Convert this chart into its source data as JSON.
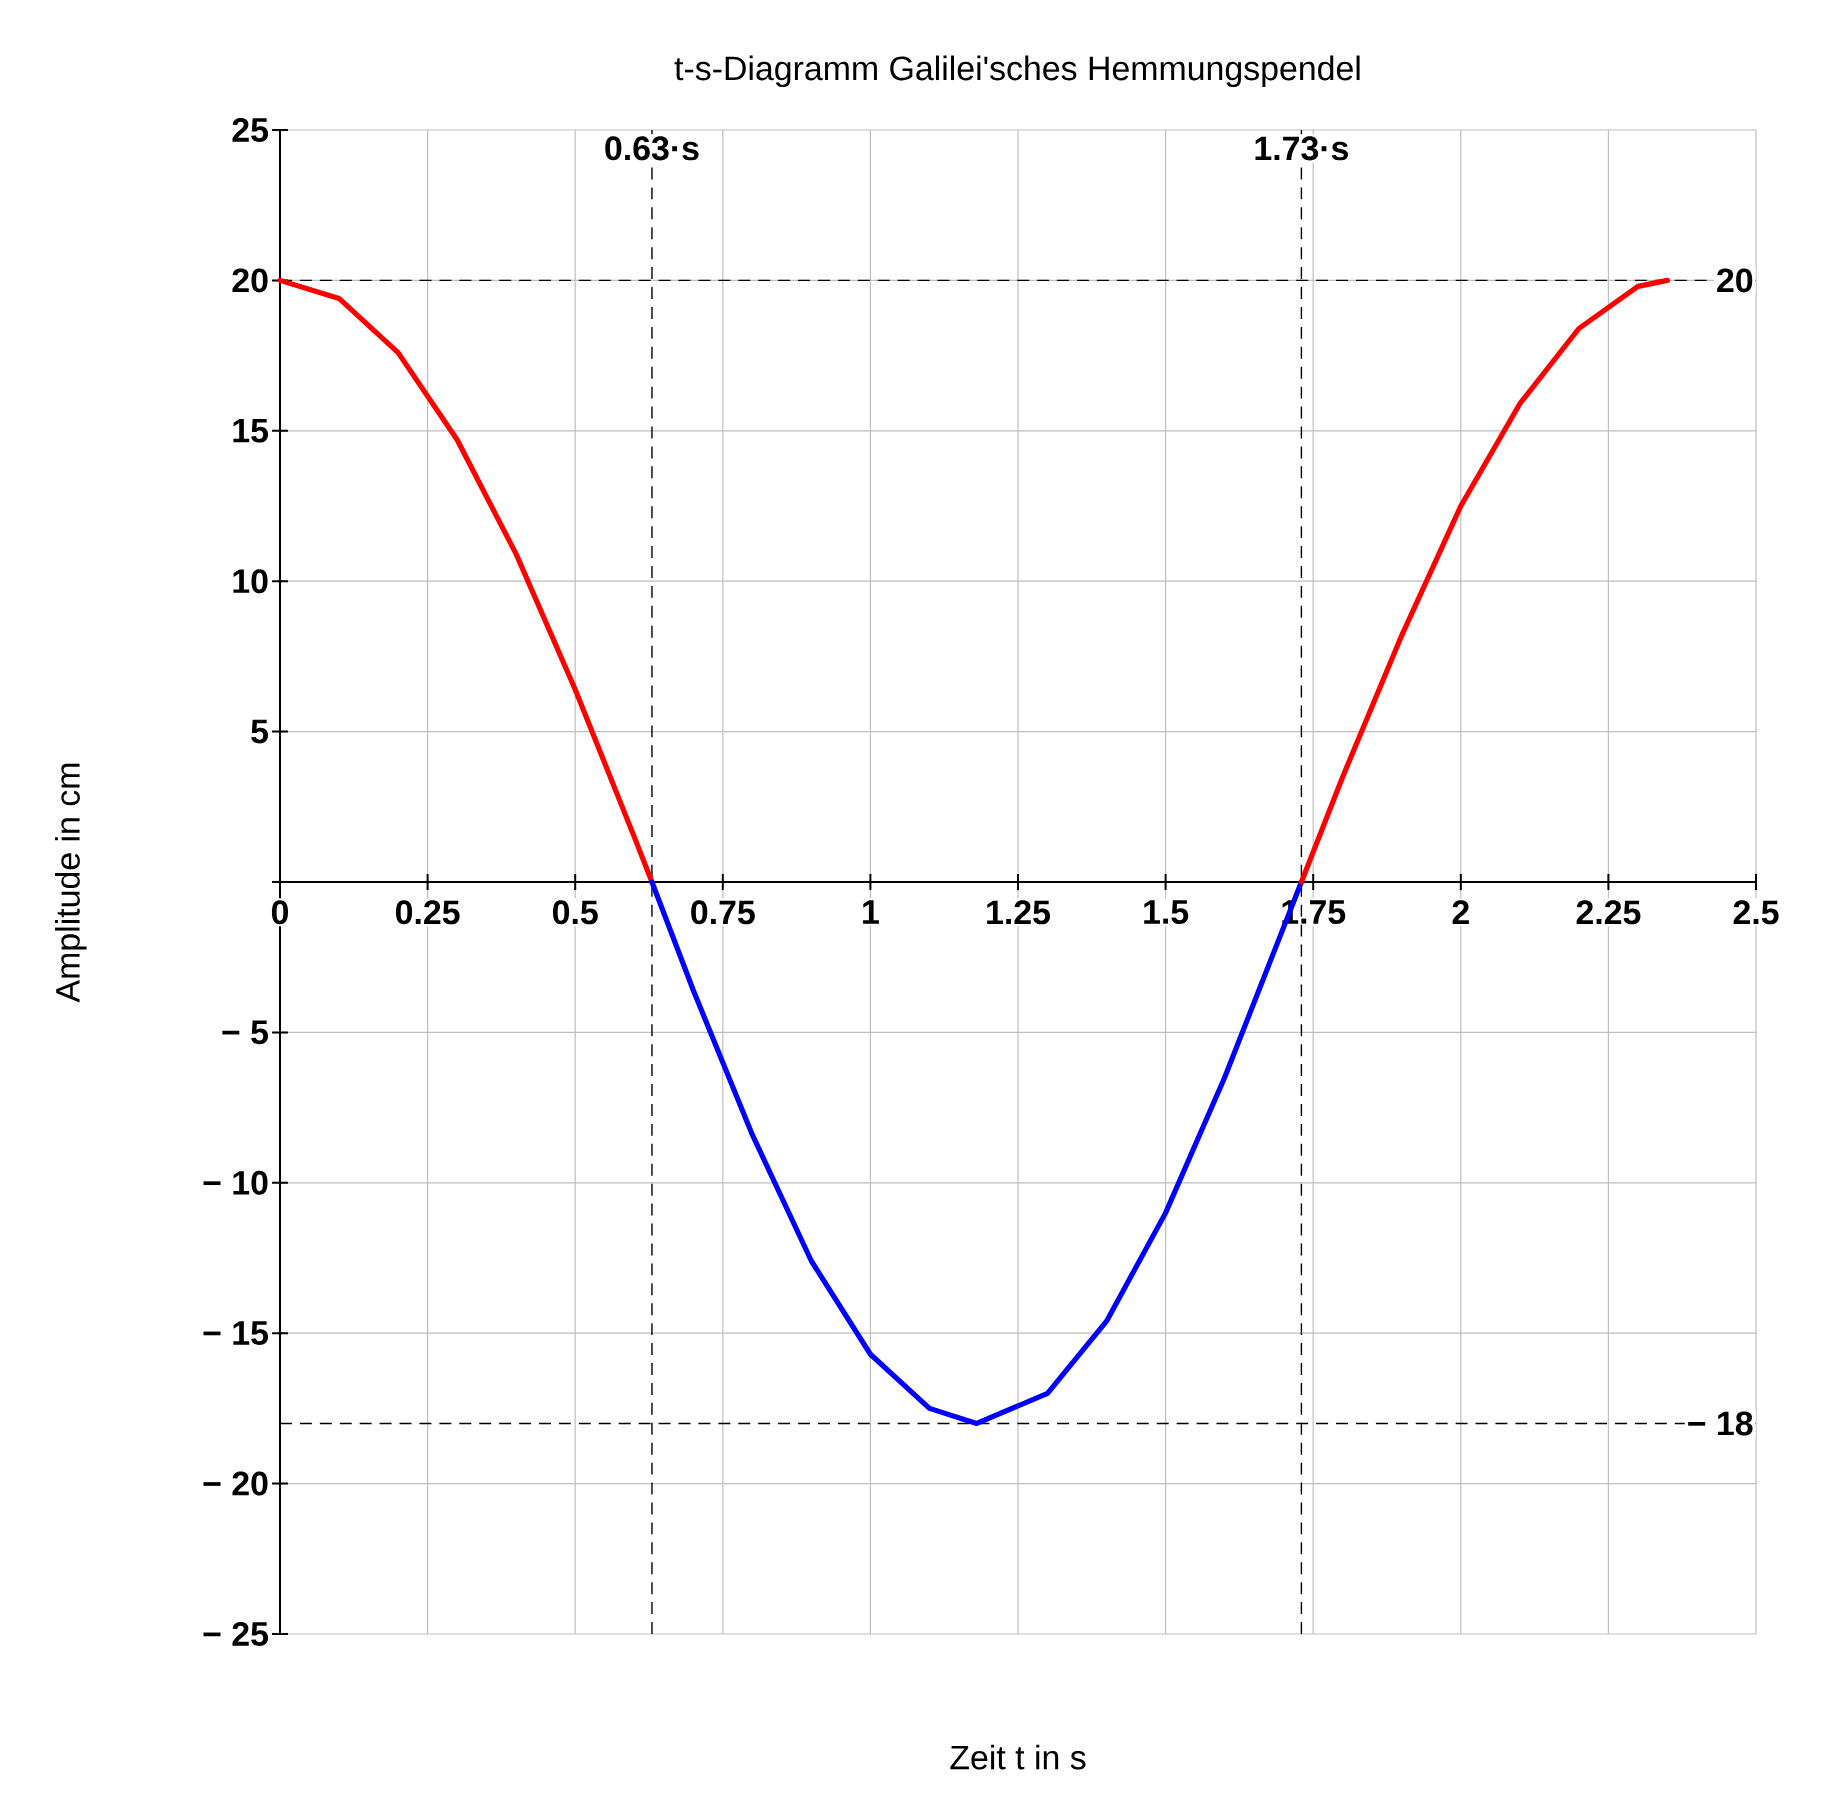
{
  "chart_data": {
    "type": "line",
    "title": "t-s-Diagramm Galilei'sches Hemmungspendel",
    "xlabel": "Zeit t in s",
    "ylabel": "Amplitude in cm",
    "series": [
      {
        "color": "#ff0000",
        "x": [
          0,
          0.1,
          0.2,
          0.3,
          0.4,
          0.5,
          0.6,
          0.63
        ],
        "values": [
          20,
          19.4,
          17.6,
          14.7,
          10.9,
          6.4,
          1.5,
          0
        ]
      },
      {
        "color": "#0000ff",
        "x": [
          0.63,
          0.7,
          0.8,
          0.9,
          1.0,
          1.1,
          1.18,
          1.3,
          1.4,
          1.5,
          1.6,
          1.7,
          1.73
        ],
        "values": [
          0,
          -3.6,
          -8.4,
          -12.6,
          -15.7,
          -17.5,
          -18,
          -17,
          -14.6,
          -11,
          -6.5,
          -1.5,
          0
        ]
      },
      {
        "color": "#ff0000",
        "x": [
          1.73,
          1.8,
          1.9,
          2.0,
          2.1,
          2.2,
          2.3,
          2.35
        ],
        "values": [
          0,
          3.5,
          8.2,
          12.5,
          15.9,
          18.4,
          19.8,
          20
        ]
      }
    ],
    "xlim": [
      0,
      2.5
    ],
    "ylim": [
      -25,
      25
    ],
    "xticks": [
      0,
      0.25,
      0.5,
      0.75,
      1,
      1.25,
      1.5,
      1.75,
      2,
      2.25,
      2.5
    ],
    "yticks": [
      {
        "value": -25,
        "label": "− 25"
      },
      {
        "value": -20,
        "label": "− 20"
      },
      {
        "value": -15,
        "label": "− 15"
      },
      {
        "value": -10,
        "label": "− 10"
      },
      {
        "value": -5,
        "label": "− 5"
      },
      {
        "value": 0,
        "label": null
      },
      5,
      10,
      15,
      20,
      25
    ],
    "ref_lines": [
      {
        "axis": "x",
        "value": 0.63,
        "label": "0.63·s",
        "line_style": "dashed",
        "color": "#000000"
      },
      {
        "axis": "x",
        "value": 1.73,
        "label": "1.73·s",
        "line_style": "dashed",
        "color": "#000000"
      },
      {
        "axis": "y",
        "value": 20,
        "label": "20",
        "line_style": "dashed",
        "color": "#000000"
      },
      {
        "axis": "y",
        "value": -18,
        "label": "− 18",
        "line_style": "dashed",
        "color": "#000000"
      }
    ],
    "grid": true,
    "marker": "none",
    "line_style": "solid"
  }
}
